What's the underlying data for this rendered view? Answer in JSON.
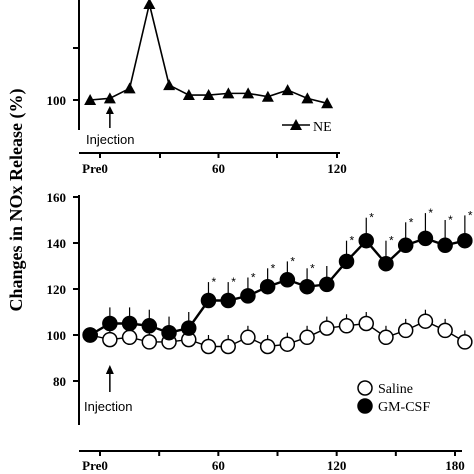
{
  "ylabel": "Changes in NOx Release (%)",
  "chart_data": [
    {
      "type": "line",
      "x_ticks": [
        "Pre0",
        "60",
        "120"
      ],
      "x_tick_values": [
        0,
        60,
        120
      ],
      "y_ticks": [
        "100"
      ],
      "y_tick_values": [
        100
      ],
      "xlim": [
        0,
        120
      ],
      "ylim": [
        90,
        160
      ],
      "annotation": "Injection",
      "annotation_x": 5,
      "series": [
        {
          "name": "NE",
          "marker": "triangle",
          "x": [
            -5,
            5,
            15,
            25,
            35,
            45,
            55,
            65,
            75,
            85,
            95,
            105,
            115
          ],
          "y": [
            100,
            101,
            107,
            158,
            109,
            103,
            103,
            104,
            104,
            102,
            106,
            101,
            98
          ]
        }
      ]
    },
    {
      "type": "line",
      "x_ticks": [
        "Pre0",
        "60",
        "120",
        "180"
      ],
      "x_tick_values": [
        0,
        60,
        120,
        180
      ],
      "y_ticks": [
        "80",
        "100",
        "120",
        "140",
        "160"
      ],
      "y_tick_values": [
        80,
        100,
        120,
        140,
        160
      ],
      "xlim": [
        0,
        180
      ],
      "ylim": [
        80,
        160
      ],
      "annotation": "Injection",
      "annotation_x": 5,
      "series": [
        {
          "name": "Saline",
          "marker": "open-circle",
          "x": [
            -5,
            5,
            15,
            25,
            35,
            45,
            55,
            65,
            75,
            85,
            95,
            105,
            115,
            125,
            135,
            145,
            155,
            165,
            175,
            185
          ],
          "y": [
            100,
            98,
            99,
            97,
            97,
            98,
            95,
            95,
            99,
            95,
            96,
            99,
            103,
            104,
            105,
            99,
            102,
            106,
            102,
            97
          ],
          "err": [
            0,
            5,
            5,
            5,
            5,
            5,
            5,
            5,
            5,
            5,
            5,
            5,
            5,
            5,
            5,
            5,
            5,
            5,
            5,
            5
          ]
        },
        {
          "name": "GM-CSF",
          "marker": "filled-circle",
          "x": [
            -5,
            5,
            15,
            25,
            35,
            45,
            55,
            65,
            75,
            85,
            95,
            105,
            115,
            125,
            135,
            145,
            155,
            165,
            175,
            185
          ],
          "y": [
            100,
            105,
            105,
            104,
            101,
            103,
            115,
            115,
            117,
            121,
            124,
            121,
            122,
            132,
            141,
            131,
            139,
            142,
            139,
            141
          ],
          "err": [
            0,
            7,
            7,
            7,
            7,
            7,
            8,
            8,
            8,
            8,
            8,
            8,
            8,
            9,
            10,
            10,
            10,
            11,
            11,
            11
          ],
          "significant": [
            false,
            false,
            false,
            false,
            false,
            false,
            true,
            true,
            true,
            true,
            true,
            true,
            false,
            true,
            true,
            true,
            true,
            true,
            true,
            true
          ]
        }
      ],
      "significance_marker": "*"
    }
  ]
}
